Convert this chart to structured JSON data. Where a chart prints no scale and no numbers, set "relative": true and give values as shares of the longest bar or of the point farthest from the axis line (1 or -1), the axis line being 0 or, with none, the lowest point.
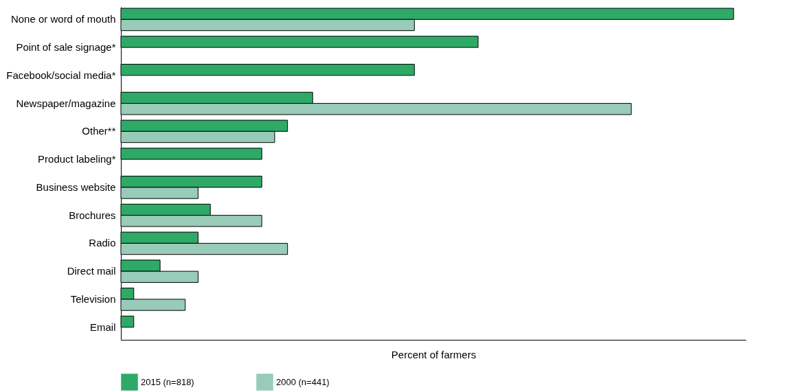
{
  "chart_data": {
    "type": "bar",
    "orientation": "horizontal",
    "relative": true,
    "xlabel": "Percent of farmers",
    "legend": "bottom",
    "grid": false,
    "categories": [
      "None or word of mouth",
      "Point of sale signage*",
      "Facebook/social media*",
      "Newspaper/magazine",
      "Other**",
      "Product labeling*",
      "Business website",
      "Brochures",
      "Radio",
      "Direct mail",
      "Television",
      "Email"
    ],
    "series": [
      {
        "name": "2015 (n=818)",
        "color": "#2eaa66",
        "values": [
          1,
          0.583,
          0.479,
          0.313,
          0.272,
          0.23,
          0.23,
          0.146,
          0.126,
          0.064,
          0.021,
          0.021
        ]
      },
      {
        "name": "2000 (n=441)",
        "color": "#98cbb8",
        "values": [
          0.479,
          null,
          null,
          0.833,
          0.251,
          null,
          0.126,
          0.23,
          0.272,
          0.126,
          0.105,
          null
        ]
      }
    ]
  }
}
